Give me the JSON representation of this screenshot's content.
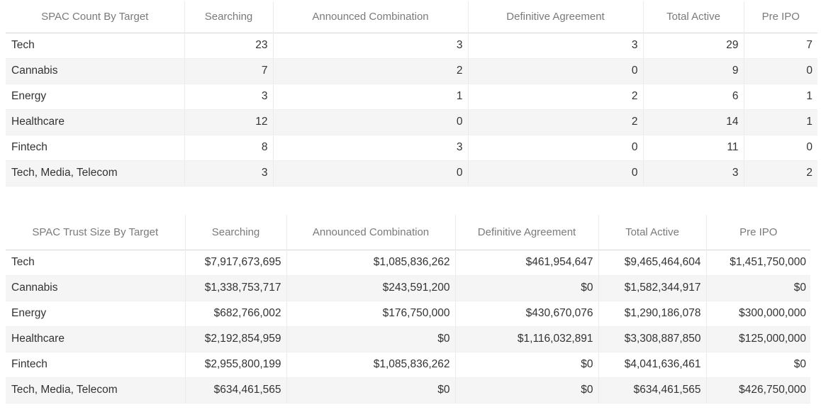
{
  "count_table": {
    "headers": [
      "SPAC Count By Target",
      "Searching",
      "Announced Combination",
      "Definitive Agreement",
      "Total Active",
      "Pre IPO"
    ],
    "rows": [
      [
        "Tech",
        "23",
        "3",
        "3",
        "29",
        "7"
      ],
      [
        "Cannabis",
        "7",
        "2",
        "0",
        "9",
        "0"
      ],
      [
        "Energy",
        "3",
        "1",
        "2",
        "6",
        "1"
      ],
      [
        "Healthcare",
        "12",
        "0",
        "2",
        "14",
        "1"
      ],
      [
        "Fintech",
        "8",
        "3",
        "0",
        "11",
        "0"
      ],
      [
        "Tech, Media, Telecom",
        "3",
        "0",
        "0",
        "3",
        "2"
      ]
    ]
  },
  "trust_table": {
    "headers": [
      "SPAC Trust Size By Target",
      "Searching",
      "Announced Combination",
      "Definitive Agreement",
      "Total Active",
      "Pre IPO"
    ],
    "rows": [
      [
        "Tech",
        "$7,917,673,695",
        "$1,085,836,262",
        "$461,954,647",
        "$9,465,464,604",
        "$1,451,750,000"
      ],
      [
        "Cannabis",
        "$1,338,753,717",
        "$243,591,200",
        "$0",
        "$1,582,344,917",
        "$0"
      ],
      [
        "Energy",
        "$682,766,002",
        "$176,750,000",
        "$430,670,076",
        "$1,290,186,078",
        "$300,000,000"
      ],
      [
        "Healthcare",
        "$2,192,854,959",
        "$0",
        "$1,116,032,891",
        "$3,308,887,850",
        "$125,000,000"
      ],
      [
        "Fintech",
        "$2,955,800,199",
        "$1,085,836,262",
        "$0",
        "$4,041,636,461",
        "$0"
      ],
      [
        "Tech, Media, Telecom",
        "$634,461,565",
        "$0",
        "$0",
        "$634,461,565",
        "$426,750,000"
      ]
    ]
  }
}
